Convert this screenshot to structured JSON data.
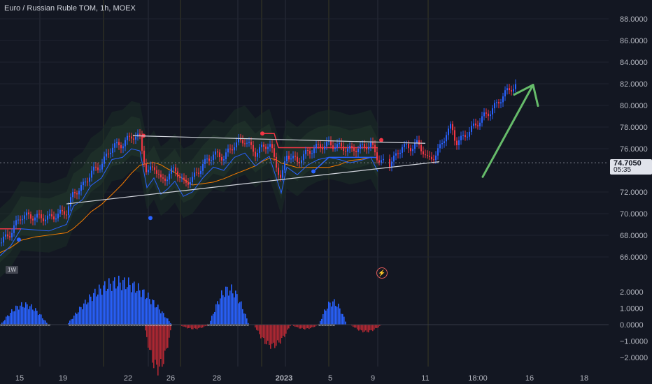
{
  "header": {
    "title": "Euro / Russian Ruble TOM, 1h, MOEX"
  },
  "price_scale": {
    "labels": [
      "88.0000",
      "86.0000",
      "84.0000",
      "82.0000",
      "80.0000",
      "78.0000",
      "76.0000",
      "72.0000",
      "70.0000",
      "68.0000",
      "66.0000"
    ],
    "current_price": "74.7050",
    "countdown": "05:35"
  },
  "oscillator_scale": {
    "labels": [
      "2.0000",
      "1.0000",
      "0.0000",
      "−1.0000",
      "−2.0000"
    ]
  },
  "time_axis": {
    "labels": [
      "15",
      "19",
      "22",
      "26",
      "28",
      "2023",
      "5",
      "9",
      "11",
      "18:00",
      "16",
      "18"
    ]
  },
  "badges": {
    "timeframe": "1W",
    "flash_icon": "⚡"
  },
  "colors": {
    "background": "#131722",
    "up_candle": "#2962ff",
    "down_candle": "#f23645",
    "trendline": "#d1d4dc",
    "arrow": "#66bb6a",
    "ma_orange": "#f57c00",
    "band_fill": "#1e3a2a"
  },
  "chart_data": {
    "type": "candlestick",
    "symbol": "Euro / Russian Ruble TOM, 1h, MOEX",
    "ylim": [
      65,
      89
    ],
    "y_ticks": [
      66,
      68,
      70,
      72,
      76,
      78,
      80,
      82,
      84,
      86,
      88
    ],
    "x_ticks": [
      "15",
      "19",
      "22",
      "26",
      "28",
      "2023",
      "5",
      "9",
      "11",
      "18:00",
      "16",
      "18"
    ],
    "price_path": [
      [
        0,
        67.3
      ],
      [
        15,
        68.2
      ],
      [
        30,
        69.8
      ],
      [
        50,
        69.7
      ],
      [
        70,
        69.6
      ],
      [
        95,
        70.2
      ],
      [
        105,
        71.9
      ],
      [
        118,
        72.5
      ],
      [
        130,
        73.8
      ],
      [
        145,
        74.5
      ],
      [
        160,
        76.2
      ],
      [
        175,
        76.4
      ],
      [
        188,
        77.2
      ],
      [
        200,
        77.0
      ],
      [
        210,
        73.6
      ],
      [
        220,
        74.5
      ],
      [
        230,
        73.0
      ],
      [
        240,
        73.5
      ],
      [
        250,
        74.2
      ],
      [
        262,
        72.8
      ],
      [
        275,
        73.2
      ],
      [
        290,
        74.5
      ],
      [
        305,
        75.5
      ],
      [
        320,
        75.2
      ],
      [
        335,
        76.4
      ],
      [
        350,
        76.8
      ],
      [
        365,
        75.6
      ],
      [
        375,
        76.1
      ],
      [
        385,
        76.5
      ],
      [
        395,
        74.5
      ],
      [
        402,
        73.1
      ],
      [
        410,
        75.5
      ],
      [
        425,
        74.8
      ],
      [
        440,
        75.7
      ],
      [
        455,
        76.2
      ],
      [
        470,
        76.4
      ],
      [
        485,
        76.2
      ],
      [
        500,
        75.9
      ],
      [
        515,
        76.1
      ],
      [
        530,
        76.4
      ],
      [
        540,
        75.1
      ],
      [
        548,
        74.7
      ],
      [
        555,
        74.5
      ],
      [
        565,
        75.2
      ],
      [
        575,
        76.3
      ],
      [
        585,
        76.0
      ],
      [
        595,
        76.5
      ],
      [
        605,
        75.8
      ],
      [
        612,
        74.9
      ],
      [
        622,
        75.4
      ],
      [
        630,
        76.2
      ],
      [
        638,
        77.5
      ],
      [
        645,
        78.0
      ],
      [
        652,
        76.6
      ],
      [
        660,
        76.9
      ],
      [
        670,
        77.6
      ],
      [
        680,
        78.2
      ],
      [
        690,
        78.9
      ],
      [
        700,
        79.4
      ],
      [
        710,
        80.1
      ],
      [
        720,
        81.0
      ],
      [
        730,
        81.6
      ],
      [
        738,
        81.8
      ]
    ],
    "trendlines": [
      {
        "name": "upper",
        "from": [
          190,
          77.2
        ],
        "to": [
          608,
          76.5
        ]
      },
      {
        "name": "lower",
        "from": [
          95,
          70.9
        ],
        "to": [
          628,
          74.8
        ]
      }
    ],
    "projection_arrow": {
      "from": [
        690,
        73.4
      ],
      "tip": [
        762,
        81.9
      ]
    },
    "oscillator": {
      "ylim": [
        -2.5,
        2.5
      ],
      "segments": [
        {
          "x0": 0,
          "x1": 68,
          "peak": 1.4
        },
        {
          "x0": 95,
          "x1": 245,
          "peak": 3.0
        },
        {
          "x0": 205,
          "x1": 245,
          "peak": -3.1
        },
        {
          "x0": 255,
          "x1": 298,
          "peak": -0.3
        },
        {
          "x0": 298,
          "x1": 355,
          "peak": 2.5
        },
        {
          "x0": 362,
          "x1": 415,
          "peak": -1.5
        },
        {
          "x0": 415,
          "x1": 455,
          "peak": -0.3
        },
        {
          "x0": 455,
          "x1": 495,
          "peak": 1.6
        },
        {
          "x0": 500,
          "x1": 545,
          "peak": -0.5
        }
      ]
    }
  }
}
